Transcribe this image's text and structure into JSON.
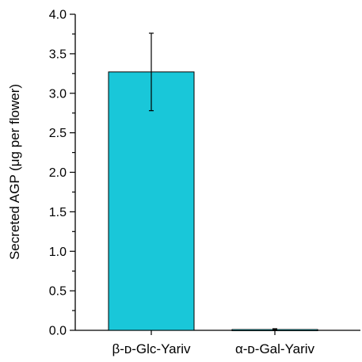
{
  "chart_data": {
    "type": "bar",
    "categories": [
      "β-ᴅ-Glc-Yariv",
      "α-ᴅ-Gal-Yariv"
    ],
    "values": [
      3.27,
      0.01
    ],
    "errors": [
      0.49,
      0.01
    ],
    "ylabel": "Secreted AGP (μg per flower)",
    "xlabel": "",
    "ylim": [
      0,
      4.0
    ],
    "yticks": [
      "0.0",
      "0.5",
      "1.0",
      "1.5",
      "2.0",
      "2.5",
      "3.0",
      "3.5",
      "4.0"
    ],
    "yticks_minor_step": 0.25,
    "bar_color": "#19C7D9",
    "grid": false,
    "legend": "none"
  }
}
